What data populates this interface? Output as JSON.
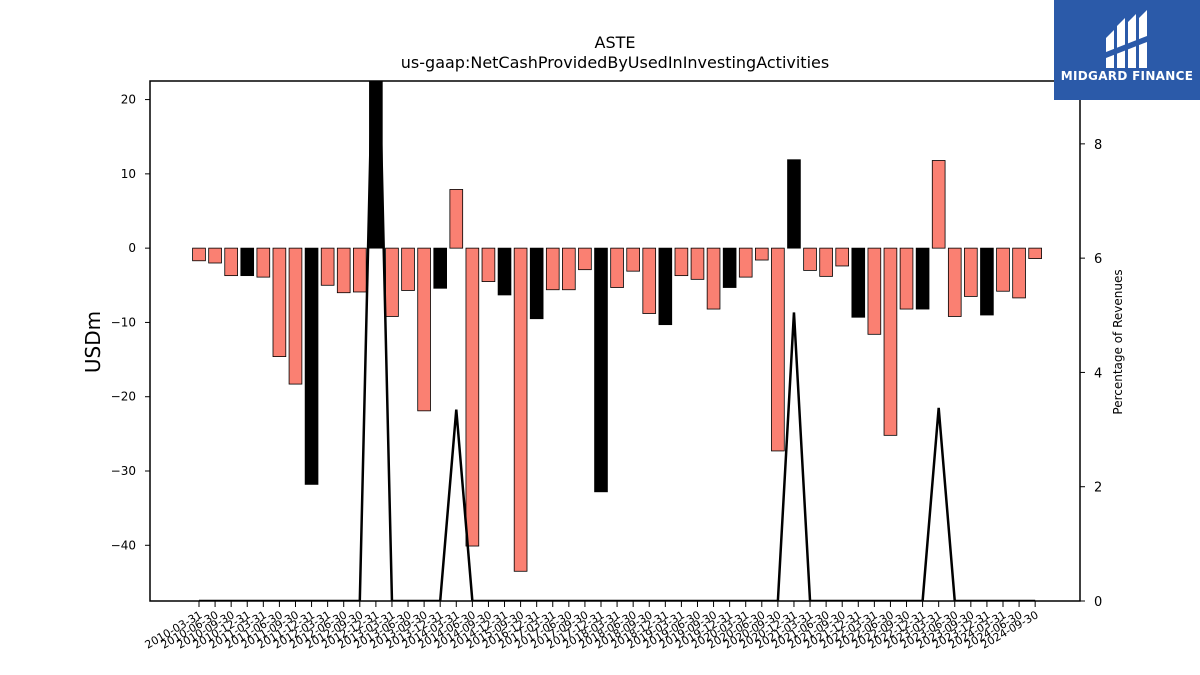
{
  "chart_data": {
    "type": "bar",
    "title": "ASTE",
    "subtitle": "us-gaap:NetCashProvidedByUsedInInvestingActivities",
    "ylabel": "USDm",
    "y2label": "Percentage of Revenues",
    "ylim": [
      -47.5,
      22.5
    ],
    "y2lim": [
      0,
      9.1
    ],
    "yticks": [
      20,
      10,
      0,
      -10,
      -20,
      -30,
      -40
    ],
    "y2ticks": [
      0,
      2,
      4,
      6,
      8
    ],
    "colors": {
      "quarterly": "#fa8072",
      "annual": "#000000",
      "line": "#000000"
    },
    "categories": [
      "2010-03-31",
      "2010-06-30",
      "2010-09-30",
      "2010-12-31",
      "2011-03-31",
      "2011-06-30",
      "2011-09-30",
      "2011-12-31",
      "2012-03-31",
      "2012-06-30",
      "2012-09-30",
      "2012-12-31",
      "2013-03-31",
      "2013-06-30",
      "2013-09-30",
      "2013-12-31",
      "2014-03-31",
      "2014-06-30",
      "2014-09-30",
      "2014-12-31",
      "2015-09-30",
      "2016-12-31",
      "2017-03-31",
      "2017-06-30",
      "2017-09-30",
      "2017-12-31",
      "2018-03-31",
      "2018-06-30",
      "2018-09-30",
      "2018-12-31",
      "2019-03-31",
      "2019-06-30",
      "2019-09-30",
      "2019-12-31",
      "2020-03-31",
      "2020-06-30",
      "2020-09-30",
      "2020-12-31",
      "2021-03-31",
      "2021-06-30",
      "2021-09-30",
      "2021-12-31",
      "2022-03-31",
      "2022-06-30",
      "2022-09-30",
      "2022-12-31",
      "2023-03-31",
      "2023-06-30",
      "2023-09-30",
      "2023-12-31",
      "2024-03-31",
      "2024-06-30",
      "2024-09-30"
    ],
    "series": [
      {
        "values": [
          -1.7,
          -2.0,
          -3.7,
          -3.7,
          -3.9,
          -14.6,
          -18.3,
          -31.8,
          -5.0,
          -6.0,
          -5.9,
          26.0,
          -9.2,
          -5.7,
          -21.9,
          -5.4,
          7.9,
          -40.1,
          -4.5,
          -6.3,
          -43.5,
          -9.5,
          -5.6,
          -5.6,
          -2.9,
          -32.8,
          -5.3,
          -3.1,
          -8.8,
          -10.3,
          -3.7,
          -4.2,
          -8.2,
          -5.3,
          -3.9,
          -1.6,
          -27.3,
          11.9,
          -3.0,
          -3.8,
          -2.4,
          -9.3,
          -11.6,
          -25.2,
          -8.2,
          -8.2,
          11.8,
          -9.2,
          -6.5,
          -9.0,
          -5.8,
          -6.7,
          -1.4
        ],
        "bar_types": [
          "q",
          "q",
          "q",
          "a",
          "q",
          "q",
          "q",
          "a",
          "q",
          "q",
          "q",
          "a",
          "q",
          "q",
          "q",
          "a",
          "q",
          "q",
          "q",
          "a",
          "q",
          "a",
          "q",
          "q",
          "q",
          "a",
          "q",
          "q",
          "q",
          "a",
          "q",
          "q",
          "q",
          "a",
          "q",
          "q",
          "q",
          "a",
          "q",
          "q",
          "q",
          "a",
          "q",
          "q",
          "q",
          "a",
          "q",
          "q",
          "q",
          "a",
          "q",
          "q",
          "q"
        ]
      },
      {
        "values": [
          0,
          0,
          0,
          0,
          0,
          0,
          0,
          0,
          0,
          0,
          0,
          12,
          0,
          0,
          0,
          0,
          3.35,
          0,
          0,
          0,
          0,
          0,
          0,
          0,
          0,
          0,
          0,
          0,
          0,
          0,
          0,
          0,
          0,
          0,
          0,
          0,
          0,
          5.05,
          0,
          0,
          0,
          0,
          0,
          0,
          0,
          0,
          3.38,
          0,
          0,
          0,
          0,
          0,
          0
        ]
      }
    ]
  },
  "logo": {
    "text": "MIDGARD FINANCE"
  }
}
